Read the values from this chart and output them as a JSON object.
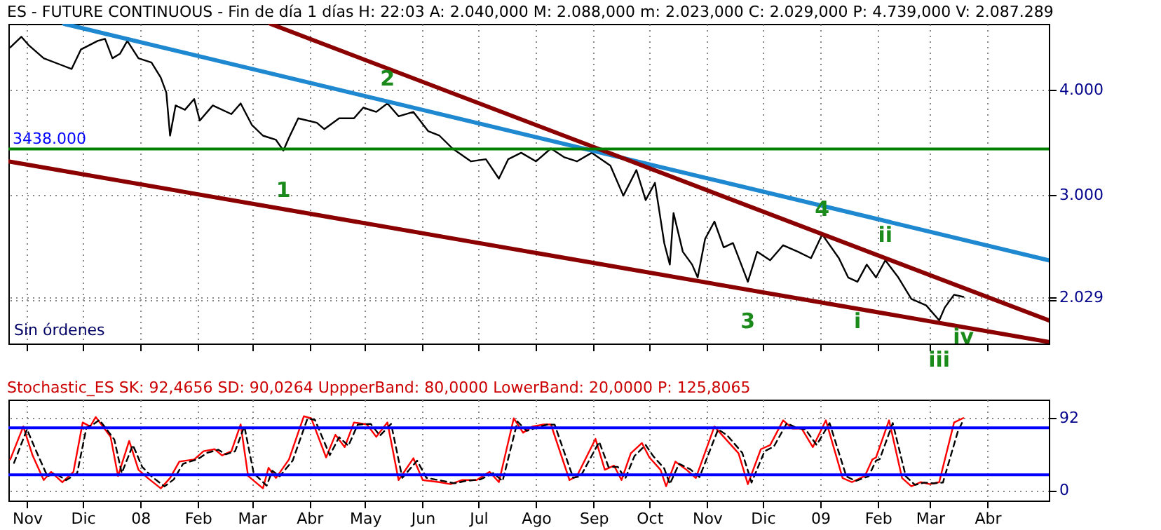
{
  "chart_data": [
    {
      "type": "line",
      "title": "ES - FUTURE CONTINUOUS - Fin de día 1 días  H: 22:03  A: 2.040,000  M: 2.088,000  m: 2.023,000  C: 2.029,000  P: 4.739,000  V: 2.087.289",
      "xlim": [
        "2007-10-22",
        "2009-05-04"
      ],
      "xticks": [
        {
          "value": "2007-11-01",
          "label": null
        },
        {
          "value": "2007-12-01",
          "label": null
        },
        {
          "value": "2008-01-01",
          "label": null
        },
        {
          "value": "2008-02-01",
          "label": null
        },
        {
          "value": "2008-03-01",
          "label": null
        },
        {
          "value": "2008-04-01",
          "label": null
        },
        {
          "value": "2008-05-01",
          "label": null
        },
        {
          "value": "2008-06-01",
          "label": null
        },
        {
          "value": "2008-07-01",
          "label": null
        },
        {
          "value": "2008-08-01",
          "label": null
        },
        {
          "value": "2008-09-01",
          "label": null
        },
        {
          "value": "2008-10-01",
          "label": null
        },
        {
          "value": "2008-11-01",
          "label": null
        },
        {
          "value": "2008-12-01",
          "label": null
        },
        {
          "value": "2009-01-01",
          "label": null
        },
        {
          "value": "2009-02-01",
          "label": null
        },
        {
          "value": "2009-03-01",
          "label": null
        },
        {
          "value": "2009-04-01",
          "label": null
        }
      ],
      "ylim": [
        1585,
        4630
      ],
      "yticks": [
        {
          "value": 2000,
          "label": null
        },
        {
          "value": 2029,
          "label": "2.029"
        },
        {
          "value": 3000,
          "label": "3.000"
        },
        {
          "value": 4000,
          "label": "4.000"
        }
      ],
      "grid": true,
      "tick_labels": "y",
      "series": [
        {
          "color": "#000000",
          "x": [
            "2007-10-23",
            "2007-10-29",
            "2007-11-02",
            "2007-11-10",
            "2007-11-19",
            "2007-11-25",
            "2007-11-30",
            "2007-12-09",
            "2007-12-13",
            "2007-12-17",
            "2007-12-21",
            "2007-12-25",
            "2007-12-31",
            "2008-01-07",
            "2008-01-12",
            "2008-01-15",
            "2008-01-17",
            "2008-01-20",
            "2008-01-25",
            "2008-01-30",
            "2008-02-02",
            "2008-02-09",
            "2008-02-19",
            "2008-02-24",
            "2008-03-01",
            "2008-03-07",
            "2008-03-14",
            "2008-03-18",
            "2008-03-21",
            "2008-03-26",
            "2008-04-05",
            "2008-04-09",
            "2008-04-17",
            "2008-04-25",
            "2008-04-30",
            "2008-05-07",
            "2008-05-13",
            "2008-05-19",
            "2008-05-27",
            "2008-06-04",
            "2008-06-10",
            "2008-06-17",
            "2008-06-27",
            "2008-07-05",
            "2008-07-12",
            "2008-07-17",
            "2008-07-24",
            "2008-08-01",
            "2008-08-09",
            "2008-08-16",
            "2008-08-23",
            "2008-08-31",
            "2008-09-10",
            "2008-09-17",
            "2008-09-24",
            "2008-09-29",
            "2008-10-04",
            "2008-10-09",
            "2008-10-12",
            "2008-10-14",
            "2008-10-19",
            "2008-10-24",
            "2008-10-27",
            "2008-10-31",
            "2008-11-05",
            "2008-11-10",
            "2008-11-15",
            "2008-11-23",
            "2008-11-28",
            "2008-12-05",
            "2008-12-12",
            "2008-12-20",
            "2008-12-27",
            "2009-01-02",
            "2009-01-11",
            "2009-01-16",
            "2009-01-21",
            "2009-01-26",
            "2009-01-31",
            "2009-02-05",
            "2009-02-12",
            "2009-02-19",
            "2009-02-27",
            "2009-03-06",
            "2009-03-09",
            "2009-03-14",
            "2009-03-19"
          ],
          "values": [
            4405,
            4507,
            4425,
            4302,
            4241,
            4200,
            4385,
            4467,
            4487,
            4302,
            4344,
            4467,
            4302,
            4262,
            4118,
            3975,
            3565,
            3853,
            3811,
            3914,
            3709,
            3853,
            3770,
            3872,
            3668,
            3565,
            3525,
            3423,
            3545,
            3730,
            3688,
            3627,
            3730,
            3730,
            3832,
            3791,
            3872,
            3750,
            3791,
            3607,
            3565,
            3443,
            3320,
            3340,
            3156,
            3340,
            3402,
            3320,
            3443,
            3361,
            3320,
            3402,
            3279,
            2993,
            3238,
            2951,
            3115,
            2542,
            2337,
            2828,
            2459,
            2337,
            2214,
            2582,
            2747,
            2501,
            2542,
            2173,
            2459,
            2378,
            2521,
            2459,
            2398,
            2624,
            2398,
            2214,
            2173,
            2337,
            2214,
            2378,
            2214,
            2010,
            1948,
            1805,
            1928,
            2050,
            2029
          ]
        },
        {
          "color": "#1e88d0",
          "x": [
            "2007-11-21",
            "2009-05-04"
          ],
          "values": [
            4630,
            2378
          ]
        },
        {
          "color": "#8b0000",
          "x": [
            "2008-03-11",
            "2009-05-04"
          ],
          "values": [
            4630,
            1805
          ]
        },
        {
          "color": "#8b0000",
          "x": [
            "2007-10-22",
            "2009-05-04"
          ],
          "values": [
            3320,
            1600
          ]
        }
      ],
      "ref_lines": [
        {
          "axis": "y",
          "value": 3438,
          "label": "3438.000",
          "color": "#008000"
        }
      ],
      "annotations": [
        {
          "text": "1",
          "x": "2008-03-18",
          "y": 3423
        },
        {
          "text": "2",
          "x": "2008-05-13",
          "y": 3872
        },
        {
          "text": "3",
          "x": "2008-11-23",
          "y": 2173
        },
        {
          "text": "4",
          "x": "2009-01-02",
          "y": 2624
        },
        {
          "text": "i",
          "x": "2009-01-21",
          "y": 2173
        },
        {
          "text": "ii",
          "x": "2009-02-05",
          "y": 2378
        },
        {
          "text": "iii",
          "x": "2009-03-06",
          "y": 1805
        },
        {
          "text": "iv",
          "x": "2009-03-19",
          "y": 2029
        },
        "Sin órdenes"
      ]
    },
    {
      "type": "line",
      "title": "Stochastic_ES  SK: 92,4656  SD: 90,0264  UppperBand: 80,0000  LowerBand: 20,0000  P: 125,8065",
      "xlim": [
        "2007-10-22",
        "2009-05-04"
      ],
      "xticks": [
        {
          "value": "2007-11-01",
          "label": "Nov"
        },
        {
          "value": "2007-12-01",
          "label": "Dic"
        },
        {
          "value": "2008-01-01",
          "label": "08"
        },
        {
          "value": "2008-02-01",
          "label": "Feb"
        },
        {
          "value": "2008-03-01",
          "label": "Mar"
        },
        {
          "value": "2008-04-01",
          "label": "Abr"
        },
        {
          "value": "2008-05-01",
          "label": "May"
        },
        {
          "value": "2008-06-01",
          "label": "Jun"
        },
        {
          "value": "2008-07-01",
          "label": "Jul"
        },
        {
          "value": "2008-08-01",
          "label": "Ago"
        },
        {
          "value": "2008-09-01",
          "label": "Sep"
        },
        {
          "value": "2008-10-01",
          "label": "Oct"
        },
        {
          "value": "2008-11-01",
          "label": "Nov"
        },
        {
          "value": "2008-12-01",
          "label": "Dic"
        },
        {
          "value": "2009-01-01",
          "label": "09"
        },
        {
          "value": "2009-02-01",
          "label": "Feb"
        },
        {
          "value": "2009-03-01",
          "label": "Mar"
        },
        {
          "value": "2009-04-01",
          "label": "Abr"
        }
      ],
      "ylim": [
        -13,
        116
      ],
      "yticks": [
        0,
        {
          "value": 92.5,
          "label": "92"
        }
      ],
      "grid": true,
      "series": [
        {
          "color": "#ff0000",
          "x": [
            "2007-10-23",
            "2007-10-30",
            "2007-11-04",
            "2007-11-10",
            "2007-11-14",
            "2007-11-20",
            "2007-11-26",
            "2007-12-01",
            "2007-12-05",
            "2007-12-08",
            "2007-12-16",
            "2007-12-20",
            "2007-12-26",
            "2007-12-31",
            "2008-01-05",
            "2008-01-12",
            "2008-01-17",
            "2008-01-22",
            "2008-01-30",
            "2008-02-04",
            "2008-02-10",
            "2008-02-14",
            "2008-02-19",
            "2008-02-24",
            "2008-02-28",
            "2008-03-07",
            "2008-03-10",
            "2008-03-14",
            "2008-03-21",
            "2008-03-29",
            "2008-04-02",
            "2008-04-10",
            "2008-04-15",
            "2008-04-20",
            "2008-04-25",
            "2008-05-02",
            "2008-05-07",
            "2008-05-13",
            "2008-05-19",
            "2008-05-27",
            "2008-06-01",
            "2008-06-10",
            "2008-06-16",
            "2008-06-22",
            "2008-06-30",
            "2008-07-07",
            "2008-07-12",
            "2008-07-20",
            "2008-07-25",
            "2008-07-30",
            "2008-08-05",
            "2008-08-09",
            "2008-08-19",
            "2008-08-23",
            "2008-09-02",
            "2008-09-07",
            "2008-09-12",
            "2008-09-16",
            "2008-09-21",
            "2008-09-27",
            "2008-10-01",
            "2008-10-07",
            "2008-10-10",
            "2008-10-15",
            "2008-10-21",
            "2008-10-26",
            "2008-11-05",
            "2008-11-10",
            "2008-11-18",
            "2008-11-23",
            "2008-11-30",
            "2008-12-05",
            "2008-12-12",
            "2008-12-17",
            "2008-12-22",
            "2008-12-28",
            "2009-01-04",
            "2009-01-13",
            "2009-01-18",
            "2009-01-25",
            "2009-01-29",
            "2009-01-31",
            "2009-02-07",
            "2009-02-14",
            "2009-02-19",
            "2009-02-24",
            "2009-03-01",
            "2009-03-06",
            "2009-03-14",
            "2009-03-19"
          ],
          "values": [
            39.5,
            81.6,
            44.7,
            13.2,
            23.7,
            10.5,
            23.7,
            86.8,
            81.6,
            93.7,
            68.4,
            18.4,
            63.2,
            26.3,
            15.8,
            2.6,
            15.8,
            36.8,
            39.5,
            50,
            52.6,
            44.7,
            50,
            84.2,
            18.4,
            2.6,
            28.9,
            15.8,
            39.5,
            94.7,
            92.1,
            42.1,
            71.1,
            55.3,
            86.8,
            84.2,
            68.4,
            86.8,
            13.2,
            41.1,
            13.2,
            10.5,
            7.9,
            13.2,
            13.2,
            23.7,
            10.5,
            92.1,
            73.7,
            81.6,
            84.2,
            84.2,
            13.2,
            18.4,
            65.8,
            26.3,
            31.6,
            13.2,
            47.4,
            60.5,
            42.1,
            26.3,
            5.3,
            36.8,
            26.3,
            15.8,
            81.6,
            68.4,
            47.4,
            7.9,
            52.6,
            57.9,
            89.5,
            78.9,
            78.9,
            55.3,
            89.5,
            15.8,
            10.5,
            18.4,
            39.5,
            42.1,
            89.5,
            15.8,
            5.3,
            10.5,
            7.9,
            10.5,
            86.8,
            92.5
          ]
        },
        {
          "color": "#000000",
          "line_style": "dashed",
          "x": [
            "2007-10-25",
            "2007-11-01",
            "2007-11-06",
            "2007-11-12",
            "2007-11-16",
            "2007-11-22",
            "2007-11-28",
            "2007-12-03",
            "2007-12-07",
            "2007-12-10",
            "2007-12-18",
            "2007-12-22",
            "2007-12-28",
            "2008-01-02",
            "2008-01-07",
            "2008-01-14",
            "2008-01-19",
            "2008-01-24",
            "2008-02-01",
            "2008-02-06",
            "2008-02-12",
            "2008-02-16",
            "2008-02-21",
            "2008-02-26",
            "2008-03-02",
            "2008-03-09",
            "2008-03-12",
            "2008-03-16",
            "2008-03-23",
            "2008-03-31",
            "2008-04-04",
            "2008-04-12",
            "2008-04-17",
            "2008-04-22",
            "2008-04-27",
            "2008-05-04",
            "2008-05-09",
            "2008-05-15",
            "2008-05-21",
            "2008-05-29",
            "2008-06-03",
            "2008-06-12",
            "2008-06-18",
            "2008-06-24",
            "2008-07-02",
            "2008-07-09",
            "2008-07-14",
            "2008-07-22",
            "2008-07-27",
            "2008-08-01",
            "2008-08-07",
            "2008-08-11",
            "2008-08-21",
            "2008-08-25",
            "2008-09-04",
            "2008-09-09",
            "2008-09-14",
            "2008-09-18",
            "2008-09-23",
            "2008-09-29",
            "2008-10-03",
            "2008-10-09",
            "2008-10-12",
            "2008-10-17",
            "2008-10-23",
            "2008-10-28",
            "2008-11-07",
            "2008-11-12",
            "2008-11-20",
            "2008-11-25",
            "2008-12-02",
            "2008-12-07",
            "2008-12-14",
            "2008-12-19",
            "2008-12-24",
            "2008-12-30",
            "2009-01-06",
            "2009-01-15",
            "2009-01-20",
            "2009-01-27",
            "2009-01-31",
            "2009-02-02",
            "2009-02-09",
            "2009-02-16",
            "2009-02-21",
            "2009-02-26",
            "2009-03-03",
            "2009-03-08",
            "2009-03-16",
            "2009-03-19"
          ],
          "values": [
            35,
            78,
            50,
            18,
            22,
            13,
            22,
            80,
            85,
            90,
            65,
            22,
            58,
            30,
            18,
            5,
            14,
            34,
            40,
            48,
            52,
            46,
            50,
            82,
            22,
            6,
            25,
            18,
            38,
            92,
            90,
            45,
            68,
            57,
            84,
            85,
            70,
            85,
            16,
            38,
            16,
            12,
            9,
            12,
            14,
            22,
            12,
            88,
            76,
            80,
            84,
            84,
            16,
            18,
            62,
            30,
            30,
            15,
            44,
            58,
            44,
            28,
            8,
            34,
            27,
            17,
            78,
            70,
            48,
            10,
            50,
            56,
            86,
            80,
            78,
            58,
            86,
            18,
            12,
            18,
            38,
            40,
            86,
            18,
            7,
            10,
            9,
            10,
            75,
            90
          ]
        }
      ],
      "ref_lines": [
        {
          "axis": "y",
          "value": 80,
          "color": "#0000ff"
        },
        {
          "axis": "y",
          "value": 20,
          "color": "#0000ff"
        }
      ]
    }
  ]
}
